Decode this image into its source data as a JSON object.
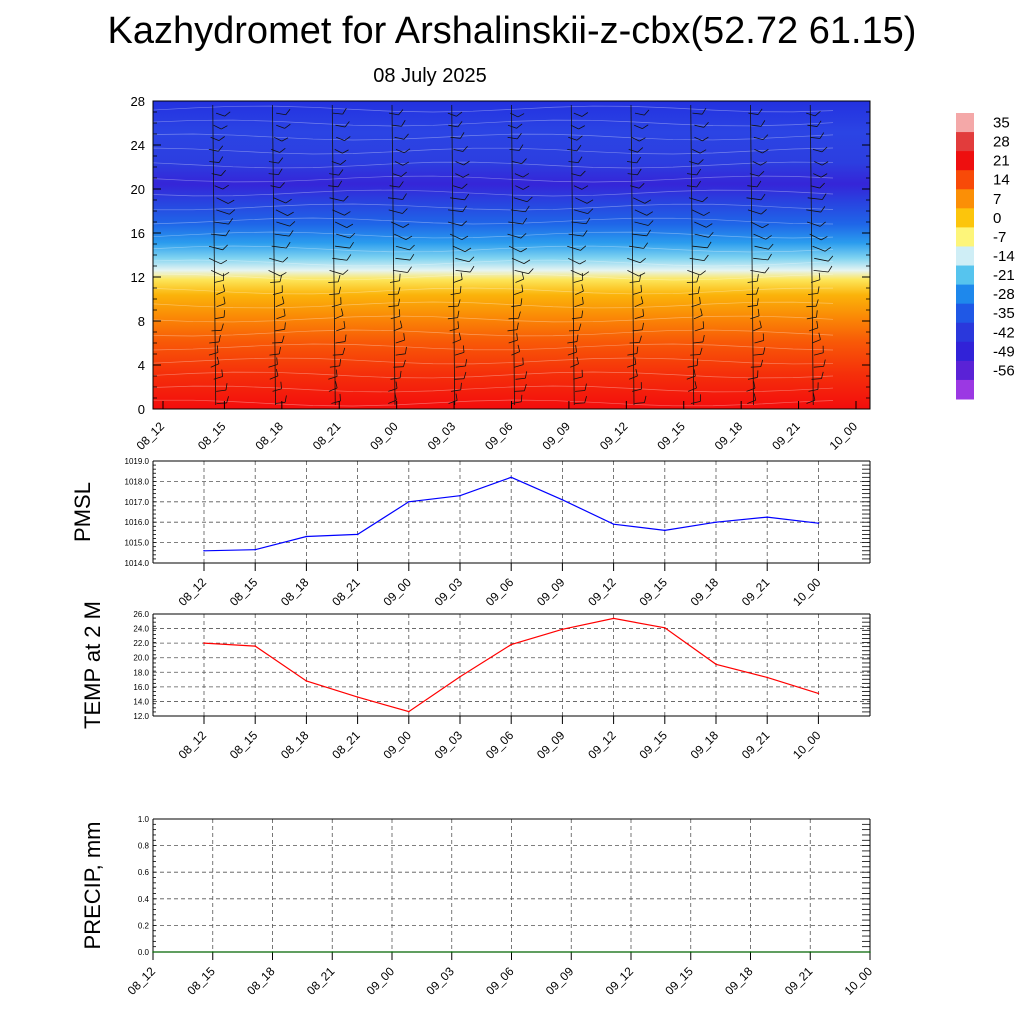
{
  "header": {
    "title": "Kazhydromet for Arshalinskii-z-cbx(52.72 61.15)",
    "date": "08 July 2025"
  },
  "chart_data": [
    {
      "type": "heatmap",
      "title": "",
      "ylabel": "",
      "ylim": [
        0,
        28
      ],
      "yticks": [
        "0",
        "4",
        "8",
        "12",
        "16",
        "20",
        "24",
        "28"
      ],
      "categories": [
        "08_12",
        "08_15",
        "08_18",
        "08_21",
        "09_00",
        "09_03",
        "09_06",
        "09_09",
        "09_12",
        "09_15",
        "09_18",
        "09_21",
        "10_00"
      ],
      "colorbar": {
        "labels": [
          "35",
          "28",
          "21",
          "14",
          "7",
          "0",
          "-7",
          "-14",
          "-21",
          "-28",
          "-35",
          "-42",
          "-49",
          "-56"
        ],
        "colors": [
          "#f4a8a8",
          "#e23c3c",
          "#ee0f0f",
          "#f84a08",
          "#fb8f06",
          "#fcc50c",
          "#fdf57a",
          "#cfeef6",
          "#56c4ee",
          "#1e88ec",
          "#1f58e6",
          "#2a38dc",
          "#3122d8",
          "#5a22d6",
          "#9b38e3"
        ]
      },
      "freezing_level_km": 12.5,
      "wind_barbs": true
    },
    {
      "type": "line",
      "ylabel": "PMSL",
      "ylim": [
        1014.0,
        1019.0
      ],
      "yticks": [
        "1014.0",
        "1015.0",
        "1016.0",
        "1017.0",
        "1018.0",
        "1019.0"
      ],
      "categories": [
        "08_12",
        "08_15",
        "08_18",
        "08_21",
        "09_00",
        "09_03",
        "09_06",
        "09_09",
        "09_12",
        "09_15",
        "09_18",
        "09_21",
        "10_00"
      ],
      "series": [
        {
          "values": [
            1014.6,
            1014.65,
            1015.3,
            1015.4,
            1017.0,
            1017.3,
            1018.2,
            1017.1,
            1015.9,
            1015.6,
            1016.0,
            1016.25,
            1015.95
          ],
          "color": "#0000ff"
        }
      ],
      "grid": true
    },
    {
      "type": "line",
      "ylabel": "TEMP at 2 M",
      "ylim": [
        12.0,
        26.0
      ],
      "yticks": [
        "12.0",
        "14.0",
        "16.0",
        "18.0",
        "20.0",
        "22.0",
        "24.0",
        "26.0"
      ],
      "categories": [
        "08_12",
        "08_15",
        "08_18",
        "08_21",
        "09_00",
        "09_03",
        "09_06",
        "09_09",
        "09_12",
        "09_15",
        "09_18",
        "09_21",
        "10_00"
      ],
      "series": [
        {
          "values": [
            22.0,
            21.6,
            16.8,
            14.6,
            12.6,
            17.4,
            21.8,
            23.9,
            25.4,
            24.1,
            19.1,
            17.3,
            15.1
          ],
          "color": "#ff0000"
        }
      ],
      "grid": true
    },
    {
      "type": "line",
      "ylabel": "PRECIP, mm",
      "ylim": [
        0.0,
        1.0
      ],
      "yticks": [
        "0.0",
        "0.2",
        "0.4",
        "0.6",
        "0.8",
        "1.0"
      ],
      "categories": [
        "08_12",
        "08_15",
        "08_18",
        "08_21",
        "09_00",
        "09_03",
        "09_06",
        "09_09",
        "09_12",
        "09_15",
        "09_18",
        "09_21",
        "10_00"
      ],
      "series": [
        {
          "values": [
            0,
            0,
            0,
            0,
            0,
            0,
            0,
            0,
            0,
            0,
            0,
            0,
            0
          ],
          "color": "#006400"
        }
      ],
      "grid": true
    }
  ]
}
